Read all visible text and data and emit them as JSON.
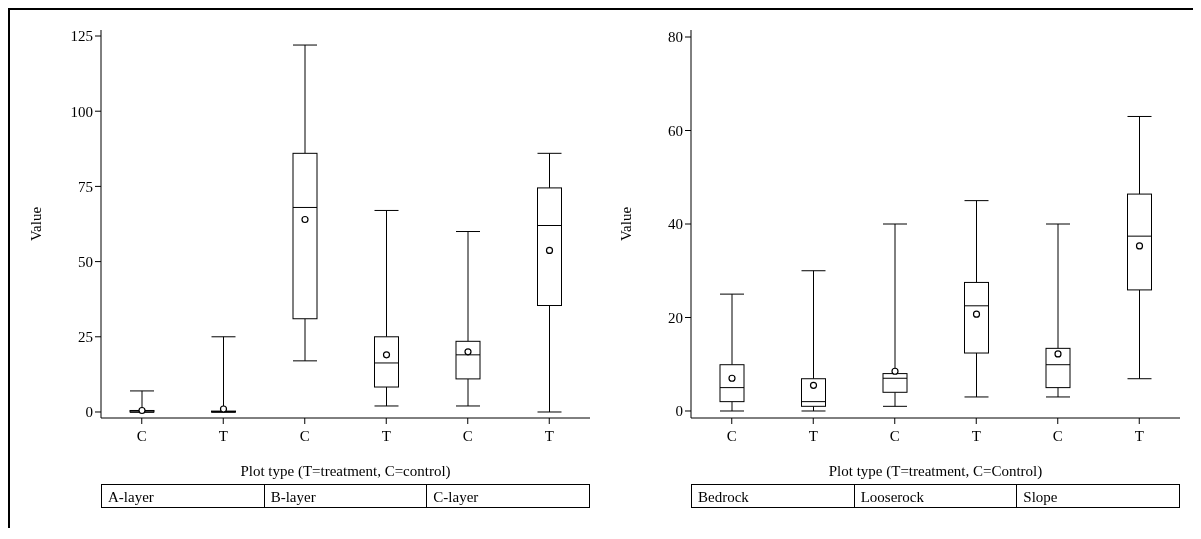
{
  "chart_data": [
    {
      "type": "box",
      "xlabel": "Plot type (T=treatment, C=control)",
      "ylabel": "Value",
      "categories": [
        "C",
        "T",
        "C",
        "T",
        "C",
        "T"
      ],
      "ylim": [
        -2,
        127
      ],
      "yticks": [
        0,
        25,
        50,
        75,
        100,
        125
      ],
      "grid": false,
      "legend": false,
      "boxes": [
        {
          "low": 0,
          "q1": 0,
          "median": 0,
          "q3": 0.5,
          "high": 7,
          "mean": 0.5
        },
        {
          "low": 0,
          "q1": 0,
          "median": 0,
          "q3": 0.3,
          "high": 25,
          "mean": 1
        },
        {
          "low": 17,
          "q1": 31,
          "median": 68,
          "q3": 86,
          "high": 122,
          "mean": 64
        },
        {
          "low": 2,
          "q1": 8.3,
          "median": 16.3,
          "q3": 25,
          "high": 67,
          "mean": 19
        },
        {
          "low": 2,
          "q1": 11,
          "median": 19,
          "q3": 23.5,
          "high": 60,
          "mean": 20
        },
        {
          "low": 0,
          "q1": 35.4,
          "median": 62,
          "q3": 74.5,
          "high": 86,
          "mean": 53.7
        }
      ],
      "annotations": [
        "A-layer",
        "B-layer",
        "C-layer"
      ]
    },
    {
      "type": "box",
      "xlabel": "Plot type (T=treatment, C=Control)",
      "ylabel": "Value",
      "categories": [
        "C",
        "T",
        "C",
        "T",
        "C",
        "T"
      ],
      "ylim": [
        -1.5,
        81.5
      ],
      "yticks": [
        0,
        20,
        40,
        60,
        80
      ],
      "grid": false,
      "legend": false,
      "boxes": [
        {
          "low": 0,
          "q1": 2,
          "median": 5,
          "q3": 9.9,
          "high": 25,
          "mean": 7
        },
        {
          "low": 0,
          "q1": 1,
          "median": 2,
          "q3": 6.9,
          "high": 30,
          "mean": 5.5
        },
        {
          "low": 1,
          "q1": 4,
          "median": 7,
          "q3": 8,
          "high": 40,
          "mean": 8.5
        },
        {
          "low": 3,
          "q1": 12.4,
          "median": 22.5,
          "q3": 27.5,
          "high": 45,
          "mean": 20.7
        },
        {
          "low": 3,
          "q1": 5,
          "median": 9.9,
          "q3": 13.4,
          "high": 40,
          "mean": 12.2
        },
        {
          "low": 6.9,
          "q1": 25.9,
          "median": 37.4,
          "q3": 46.4,
          "high": 63,
          "mean": 35.3
        }
      ],
      "annotations": [
        "Bedrock",
        "Looserock",
        "Slope"
      ]
    }
  ]
}
